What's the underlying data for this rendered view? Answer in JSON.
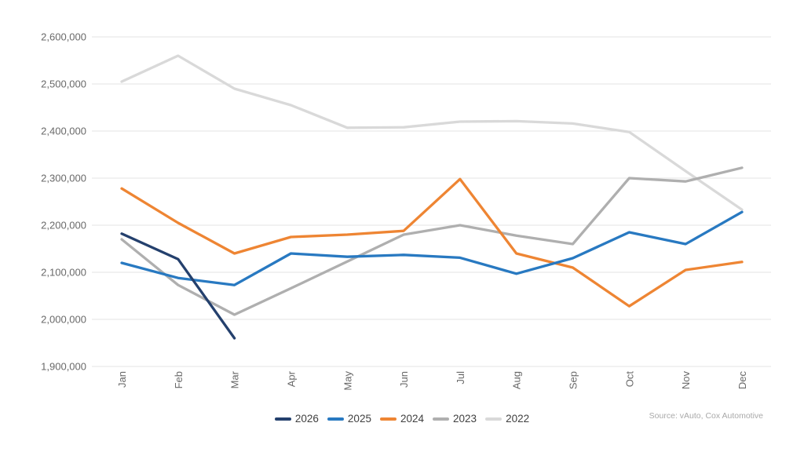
{
  "chart": {
    "source_note": "Source: vAuto, Cox Automotive",
    "y_axis": {
      "tick_labels_top_down": [
        "2,600,000",
        "2,500,000",
        "2,400,000",
        "2,300,000",
        "2,200,000",
        "2,100,000",
        "2,000,000",
        "1,900,000"
      ]
    },
    "colors": {
      "grid": "#e3e3e3",
      "axis_text": "#696969",
      "legend_text": "#404040",
      "source_text": "#a9a9a9"
    }
  },
  "chart_data": {
    "type": "line",
    "title": "",
    "xlabel": "",
    "ylabel": "",
    "categories": [
      "Jan",
      "Feb",
      "Mar",
      "Apr",
      "May",
      "Jun",
      "Jul",
      "Aug",
      "Sep",
      "Oct",
      "Nov",
      "Dec"
    ],
    "ylim": [
      1900000,
      2600000
    ],
    "y_step": 100000,
    "grid": true,
    "legend_position": "bottom",
    "series": [
      {
        "name": "2026",
        "color": "#24406d",
        "values": [
          2182000,
          2128000,
          1960000
        ]
      },
      {
        "name": "2025",
        "color": "#2879c1",
        "values": [
          2120000,
          2088000,
          2073000,
          2140000,
          2133000,
          2137000,
          2131000,
          2097000,
          2130000,
          2185000,
          2160000,
          2228000
        ]
      },
      {
        "name": "2024",
        "color": "#ee8533",
        "values": [
          2278000,
          2205000,
          2140000,
          2175000,
          2180000,
          2188000,
          2298000,
          2140000,
          2110000,
          2028000,
          2105000,
          2122000
        ]
      },
      {
        "name": "2023",
        "color": "#afafaf",
        "values": [
          2170000,
          2073000,
          2010000,
          2066000,
          2123000,
          2180000,
          2200000,
          2178000,
          2160000,
          2300000,
          2293000,
          2322000
        ]
      },
      {
        "name": "2022",
        "color": "#d9d9d9",
        "values": [
          2505000,
          2560000,
          2490000,
          2455000,
          2407000,
          2408000,
          2420000,
          2421000,
          2416000,
          2398000,
          2315000,
          2233000
        ]
      }
    ]
  }
}
